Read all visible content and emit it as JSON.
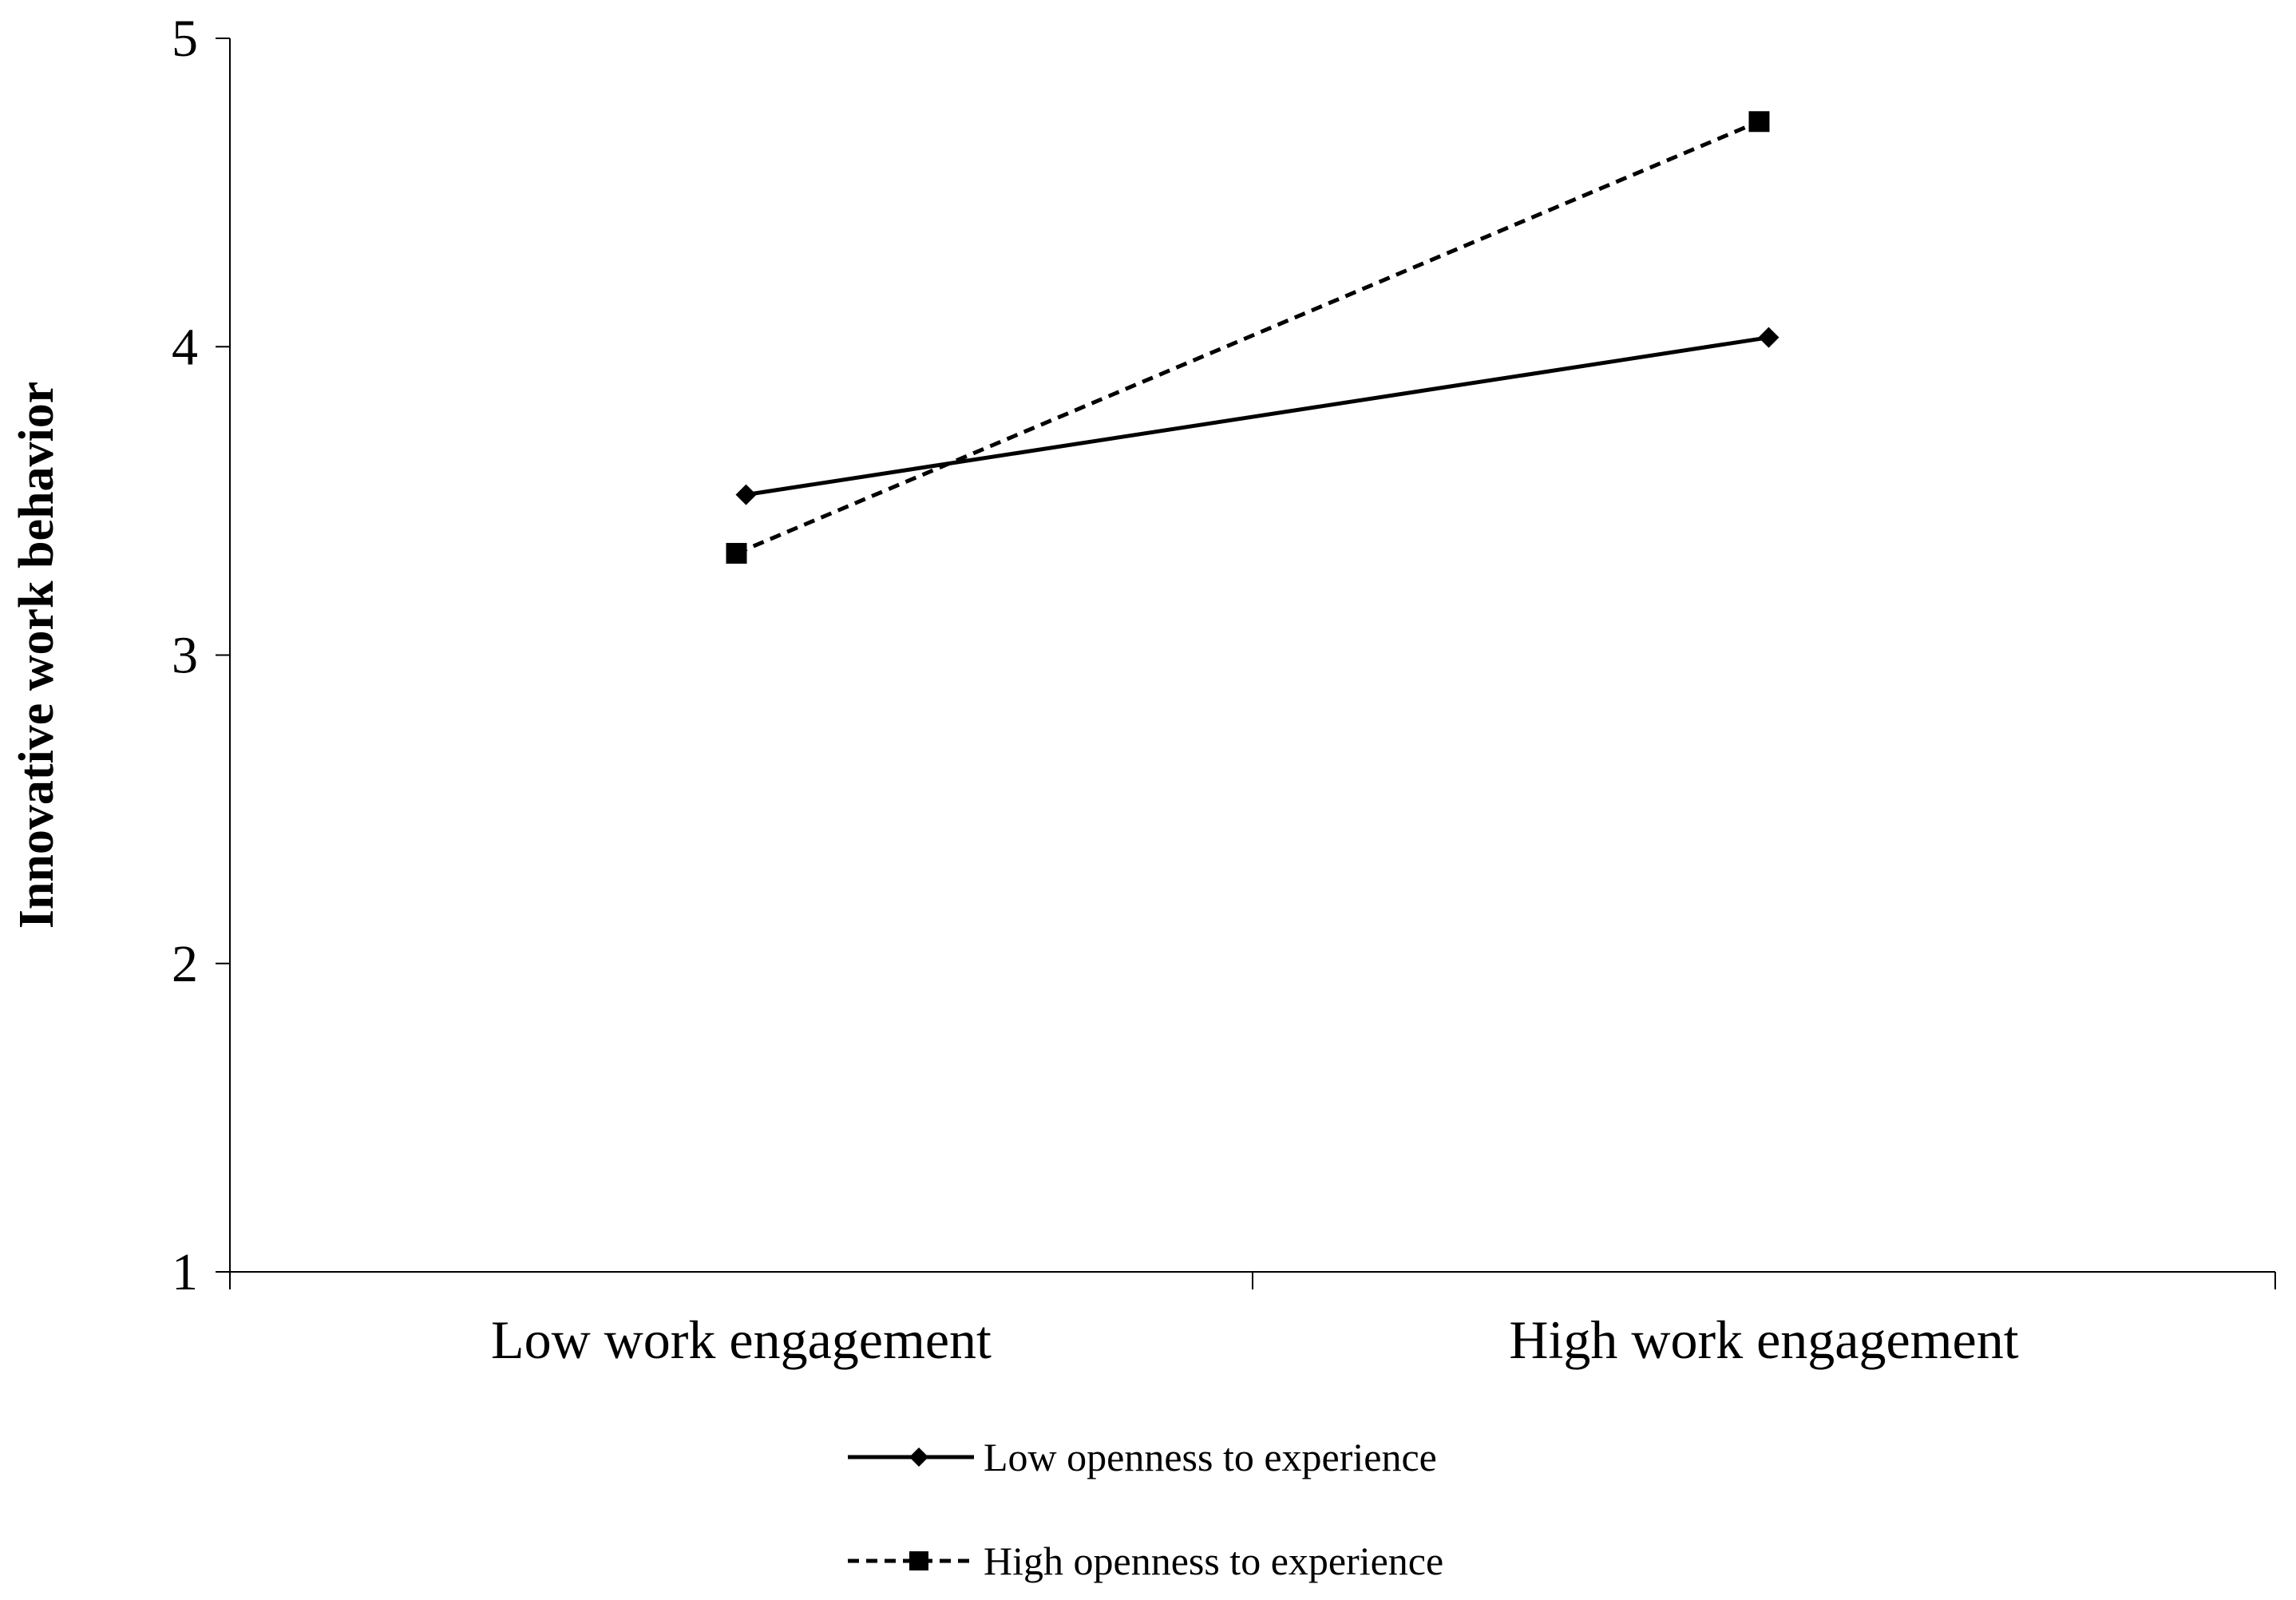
{
  "chart_data": {
    "type": "line",
    "categories": [
      "Low work engagement",
      "High work engagement"
    ],
    "ylabel": "Innovative work behavior",
    "xlabel": "",
    "ylim": [
      1,
      5
    ],
    "yticks": [
      1,
      2,
      3,
      4,
      5
    ],
    "grid": false,
    "legend_position": "bottom",
    "series": [
      {
        "name": "Low openness to experience",
        "values": [
          3.52,
          4.03
        ],
        "line_style": "solid",
        "marker": "diamond",
        "color": "#000000"
      },
      {
        "name": "High openness to experience",
        "values": [
          3.33,
          4.73
        ],
        "line_style": "dashed",
        "marker": "square",
        "color": "#000000"
      }
    ]
  }
}
